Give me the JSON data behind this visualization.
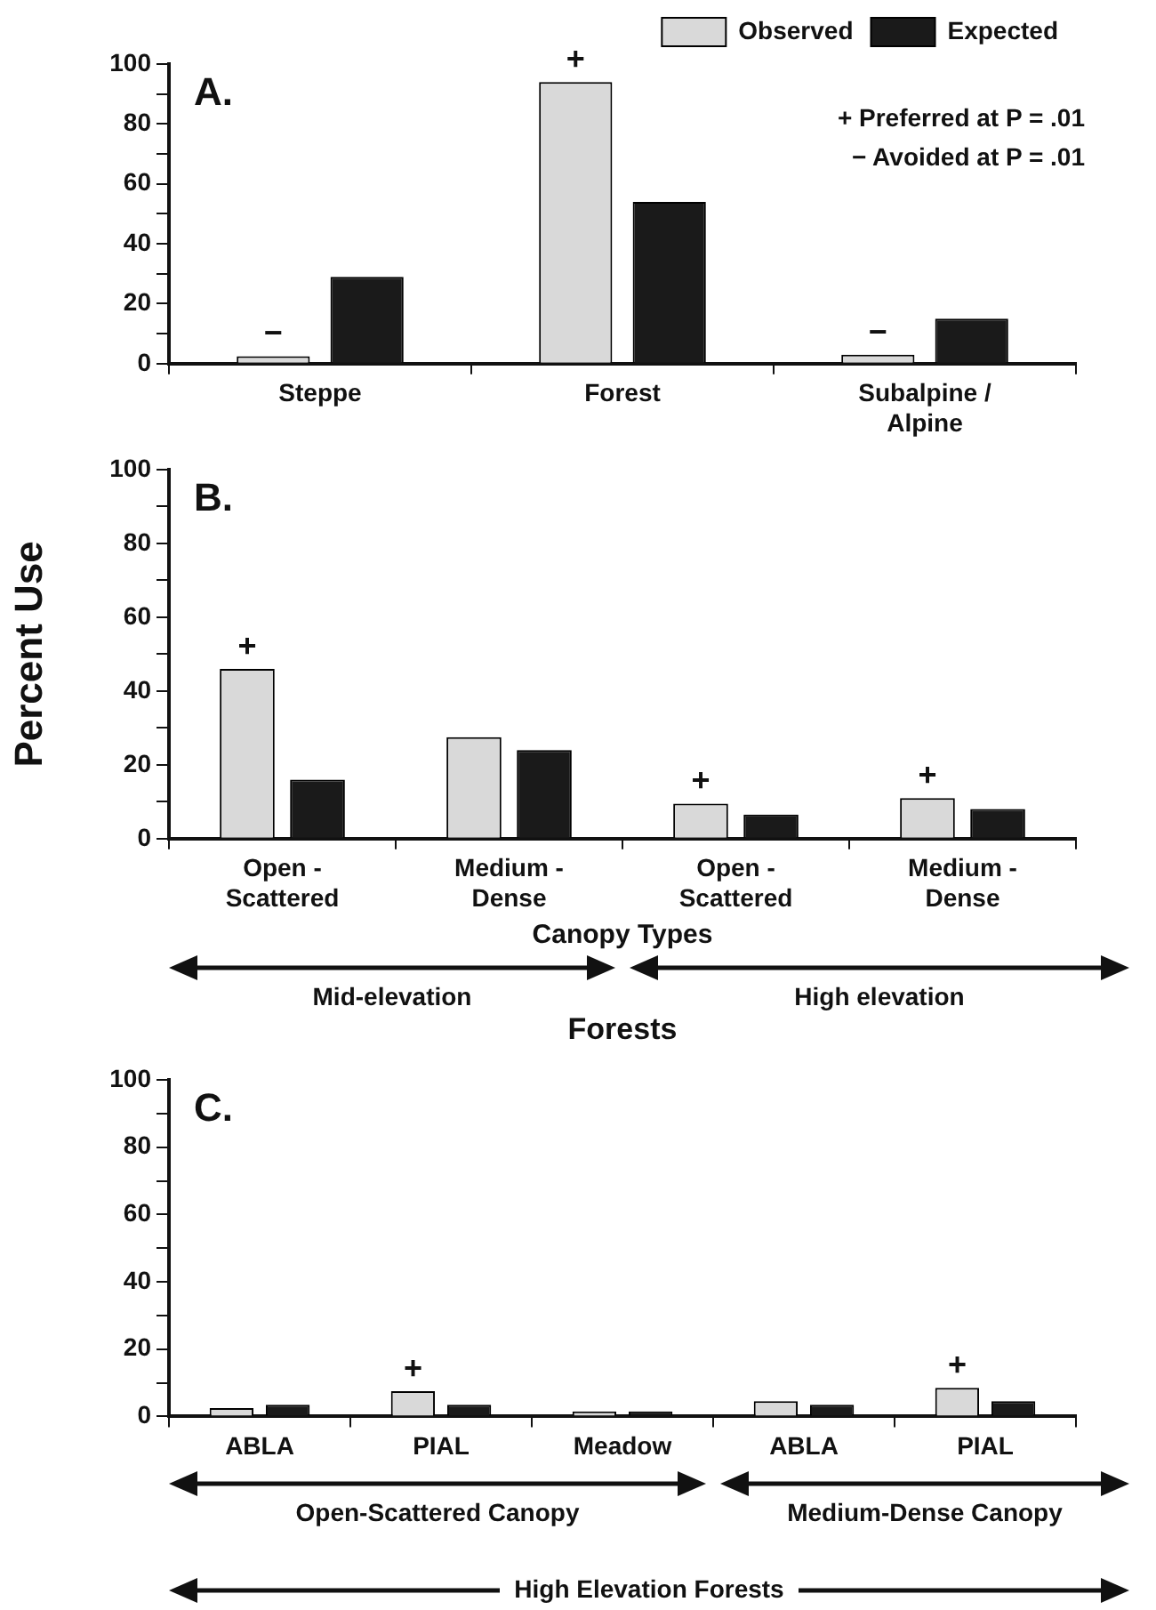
{
  "chart_data": [
    {
      "type": "bar",
      "title": "A.",
      "categories": [
        "Steppe",
        "Forest",
        "Subalpine /\nAlpine"
      ],
      "series": [
        {
          "name": "Observed",
          "color": "#d9d9d9",
          "values": [
            2.5,
            94,
            3
          ],
          "value_labels": [
            "−",
            "+",
            "−"
          ]
        },
        {
          "name": "Expected",
          "color": "#1a1a1a",
          "values": [
            29,
            54,
            15
          ]
        }
      ],
      "ylim": [
        0,
        100
      ],
      "yticks": [
        0,
        {
          "value": 10,
          "label": null
        },
        20,
        {
          "value": 30,
          "label": null
        },
        40,
        {
          "value": 50,
          "label": null
        },
        60,
        {
          "value": 70,
          "label": null
        },
        80,
        {
          "value": 90,
          "label": null
        },
        100
      ],
      "grid": false,
      "legend": "top right",
      "annotations": [
        "+ Preferred at P = .01",
        "− Avoided at P = .01"
      ]
    },
    {
      "type": "bar",
      "title": "B.",
      "categories": [
        "Open -\nScattered",
        "Medium -\nDense",
        "Open -\nScattered",
        "Medium -\nDense"
      ],
      "series": [
        {
          "color": "#d9d9d9",
          "values": [
            46,
            27.5,
            9.5,
            11
          ],
          "value_labels": [
            "+",
            null,
            "+",
            "+"
          ]
        },
        {
          "color": "#1a1a1a",
          "values": [
            16,
            24,
            6.5,
            8
          ]
        }
      ],
      "ylim": [
        0,
        100
      ],
      "yticks": [
        0,
        {
          "value": 10,
          "label": null
        },
        20,
        {
          "value": 30,
          "label": null
        },
        40,
        {
          "value": 50,
          "label": null
        },
        60,
        {
          "value": 70,
          "label": null
        },
        80,
        {
          "value": 90,
          "label": null
        },
        100
      ],
      "xlabel": "Canopy Types",
      "ylabel": "Percent Use",
      "grid": false,
      "annotations": [
        "Mid-elevation",
        "High elevation",
        "Forests"
      ]
    },
    {
      "type": "bar",
      "title": "C.",
      "categories": [
        "ABLA",
        "PIAL",
        "Meadow",
        "ABLA",
        "PIAL"
      ],
      "series": [
        {
          "color": "#d9d9d9",
          "values": [
            2.5,
            7.5,
            1.5,
            4.5,
            8.5
          ],
          "value_labels": [
            null,
            "+",
            null,
            null,
            "+"
          ]
        },
        {
          "color": "#1a1a1a",
          "values": [
            3.5,
            3.5,
            1.5,
            3.5,
            4.5
          ]
        }
      ],
      "ylim": [
        0,
        100
      ],
      "yticks": [
        0,
        {
          "value": 10,
          "label": null
        },
        20,
        {
          "value": 30,
          "label": null
        },
        40,
        {
          "value": 50,
          "label": null
        },
        60,
        {
          "value": 70,
          "label": null
        },
        80,
        {
          "value": 90,
          "label": null
        },
        100
      ],
      "grid": false,
      "annotations": [
        "Open-Scattered Canopy",
        "Medium-Dense Canopy",
        "High Elevation Forests"
      ]
    }
  ]
}
